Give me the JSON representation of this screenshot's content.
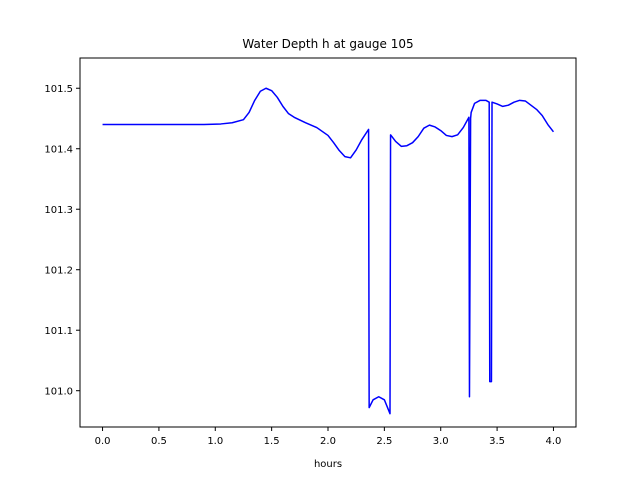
{
  "chart_data": {
    "type": "line",
    "title": "Water Depth h at gauge 105",
    "xlabel": "hours",
    "ylabel": "",
    "xlim": [
      -0.2,
      4.2
    ],
    "ylim": [
      100.94,
      101.55
    ],
    "xticks": [
      0.0,
      0.5,
      1.0,
      1.5,
      2.0,
      2.5,
      3.0,
      3.5,
      4.0
    ],
    "xtick_labels": [
      "0.0",
      "0.5",
      "1.0",
      "1.5",
      "2.0",
      "2.5",
      "3.0",
      "3.5",
      "4.0"
    ],
    "yticks": [
      101.0,
      101.1,
      101.2,
      101.3,
      101.4,
      101.5
    ],
    "ytick_labels": [
      "101.0",
      "101.1",
      "101.2",
      "101.3",
      "101.4",
      "101.5"
    ],
    "grid": false,
    "series": [
      {
        "color": "#0000ff",
        "x": [
          0.0,
          0.5,
          0.9,
          1.05,
          1.15,
          1.25,
          1.3,
          1.35,
          1.4,
          1.45,
          1.5,
          1.55,
          1.6,
          1.65,
          1.7,
          1.8,
          1.9,
          2.0,
          2.05,
          2.1,
          2.15,
          2.2,
          2.25,
          2.3,
          2.36,
          2.365,
          2.4,
          2.45,
          2.5,
          2.55,
          2.555,
          2.6,
          2.65,
          2.7,
          2.75,
          2.8,
          2.85,
          2.9,
          2.95,
          3.0,
          3.05,
          3.1,
          3.15,
          3.2,
          3.25,
          3.255,
          3.265,
          3.27,
          3.3,
          3.35,
          3.4,
          3.43,
          3.435,
          3.45,
          3.455,
          3.5,
          3.55,
          3.6,
          3.65,
          3.7,
          3.75,
          3.8,
          3.85,
          3.9,
          3.95,
          4.0
        ],
        "y": [
          101.44,
          101.44,
          101.44,
          101.441,
          101.443,
          101.448,
          101.46,
          101.48,
          101.495,
          101.5,
          101.496,
          101.485,
          101.47,
          101.458,
          101.452,
          101.443,
          101.435,
          101.422,
          101.41,
          101.397,
          101.387,
          101.385,
          101.398,
          101.415,
          101.432,
          100.972,
          100.985,
          100.99,
          100.985,
          100.962,
          101.423,
          101.412,
          101.404,
          101.405,
          101.41,
          101.42,
          101.434,
          101.439,
          101.436,
          101.43,
          101.422,
          101.42,
          101.423,
          101.435,
          101.452,
          100.99,
          101.45,
          101.46,
          101.475,
          101.48,
          101.48,
          101.477,
          101.015,
          101.015,
          101.477,
          101.474,
          101.47,
          101.472,
          101.477,
          101.48,
          101.479,
          101.472,
          101.465,
          101.455,
          101.44,
          101.428
        ]
      }
    ]
  }
}
